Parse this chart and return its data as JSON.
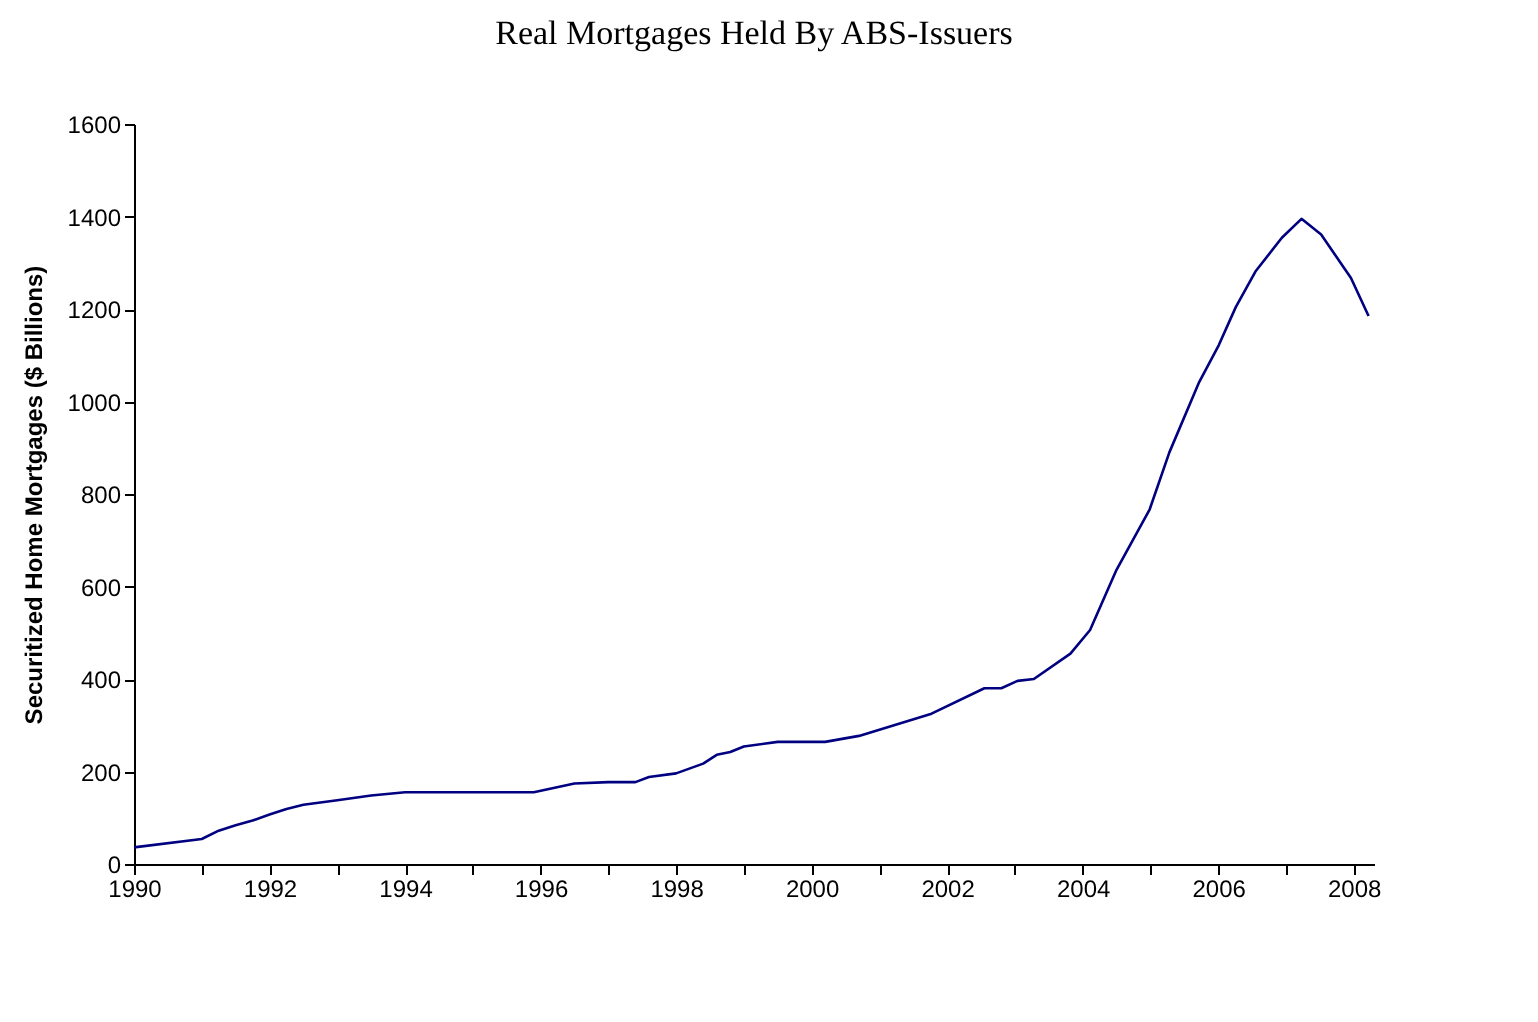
{
  "chart_data": {
    "type": "line",
    "title": "Real Mortgages Held By ABS-Issuers",
    "ylabel": "Securitized Home Mortgages ($ Billions)",
    "x": [
      1990.0,
      1991.0,
      1991.25,
      1991.5,
      1991.75,
      1992.0,
      1992.25,
      1992.5,
      1993.0,
      1993.5,
      1994.0,
      1995.9,
      1996.5,
      1997.0,
      1997.4,
      1997.6,
      1998.0,
      1998.4,
      1998.6,
      1998.8,
      1999.0,
      1999.5,
      2000.2,
      2000.7,
      2001.77,
      2002.55,
      2002.8,
      2003.04,
      2003.28,
      2003.82,
      2004.11,
      2004.5,
      2004.99,
      2005.28,
      2005.72,
      2006.01,
      2006.26,
      2006.55,
      2006.94,
      2007.23,
      2007.52,
      2007.96,
      2008.22
    ],
    "series": [
      {
        "color": "#000080",
        "values": [
          36,
          54,
          72,
          84,
          94,
          107,
          119,
          128,
          138,
          148,
          155,
          155,
          174,
          177,
          177,
          188,
          196,
          217,
          236,
          242,
          254,
          264,
          264,
          277,
          325,
          380,
          380,
          396,
          400,
          455,
          506,
          636,
          767,
          890,
          1042,
          1122,
          1204,
          1281,
          1354,
          1395,
          1361,
          1267,
          1185
        ]
      }
    ],
    "xlim": [
      1990,
      2008.3
    ],
    "xticks": [
      1990,
      {
        "value": 1991,
        "label": null
      },
      1992,
      {
        "value": 1993,
        "label": null
      },
      1994,
      {
        "value": 1995,
        "label": null
      },
      1996,
      {
        "value": 1997,
        "label": null
      },
      1998,
      {
        "value": 1999,
        "label": null
      },
      2000,
      {
        "value": 2001,
        "label": null
      },
      2002,
      {
        "value": 2003,
        "label": null
      },
      2004,
      {
        "value": 2005,
        "label": null
      },
      2006,
      {
        "value": 2007,
        "label": null
      },
      2008
    ],
    "ylim": [
      0,
      1600
    ],
    "yticks": [
      0,
      200,
      400,
      600,
      800,
      1000,
      1200,
      1400,
      1600
    ],
    "grid": false,
    "marker": "none",
    "line_style": "solid"
  }
}
